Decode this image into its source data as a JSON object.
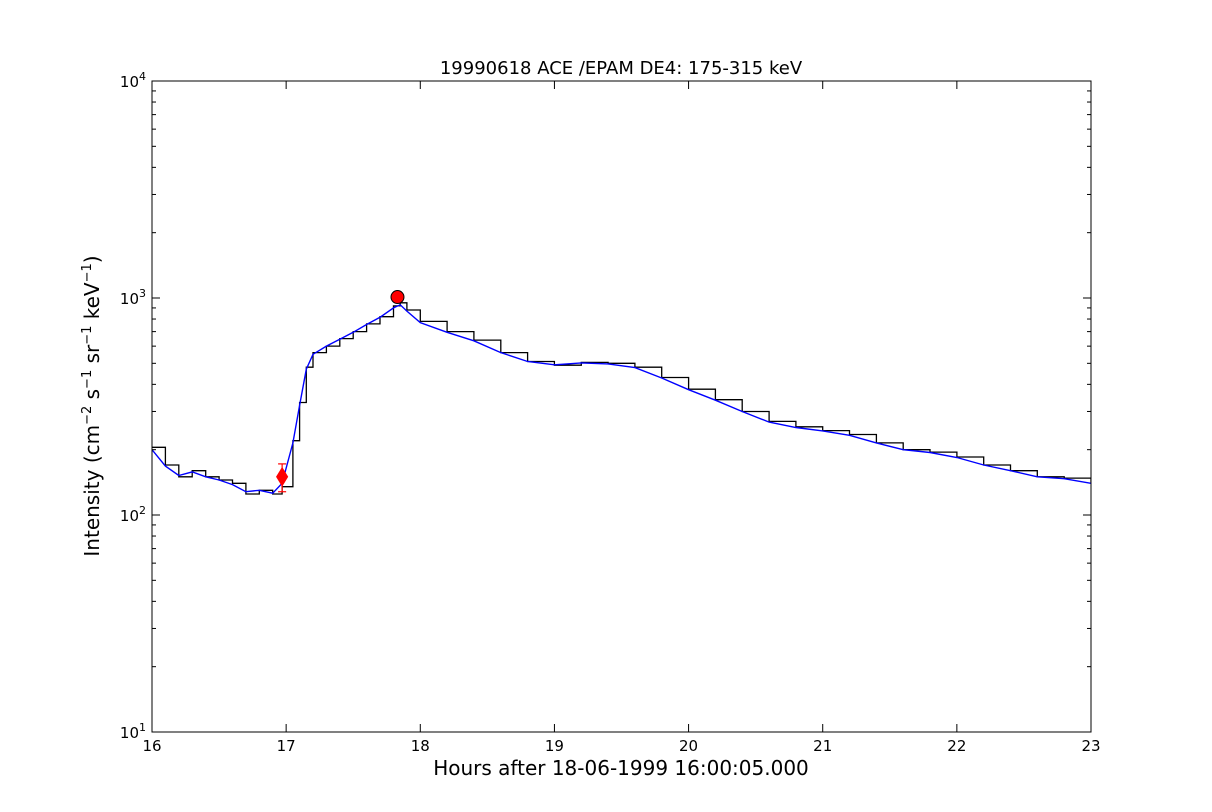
{
  "chart_data": {
    "type": "line",
    "title": "19990618 ACE /EPAM DE4: 175-315 keV",
    "xlabel": "Hours after 18-06-1999 16:00:05.000",
    "ylabel_parts": [
      "Intensity (cm",
      "−2",
      " s",
      "−1",
      " sr",
      "−1",
      " keV",
      "−1",
      ")"
    ],
    "x_scale": "linear",
    "y_scale": "log",
    "xlim": [
      16,
      23
    ],
    "ylim": [
      10,
      10000
    ],
    "x_ticks": [
      16,
      17,
      18,
      19,
      20,
      21,
      22,
      23
    ],
    "x_tick_labels": [
      "16",
      "17",
      "18",
      "19",
      "20",
      "21",
      "22",
      "23"
    ],
    "y_ticks": [
      10,
      100,
      1000,
      10000
    ],
    "y_tick_labels": [
      {
        "base": "10",
        "exp": "1"
      },
      {
        "base": "10",
        "exp": "2"
      },
      {
        "base": "10",
        "exp": "3"
      },
      {
        "base": "10",
        "exp": "4"
      }
    ],
    "grid": false,
    "series": [
      {
        "color": "#000000",
        "style": "steps",
        "x": [
          16.0,
          16.1,
          16.2,
          16.3,
          16.4,
          16.5,
          16.6,
          16.7,
          16.8,
          16.9,
          16.97,
          17.05,
          17.1,
          17.15,
          17.2,
          17.3,
          17.4,
          17.5,
          17.6,
          17.7,
          17.8,
          17.85,
          17.9,
          18.0,
          18.2,
          18.4,
          18.6,
          18.8,
          19.0,
          19.2,
          19.4,
          19.6,
          19.8,
          20.0,
          20.2,
          20.4,
          20.6,
          20.8,
          21.0,
          21.2,
          21.4,
          21.6,
          21.8,
          22.0,
          22.2,
          22.4,
          22.6,
          22.8,
          23.0
        ],
        "y": [
          205,
          170,
          150,
          160,
          150,
          145,
          140,
          125,
          130,
          125,
          135,
          220,
          330,
          480,
          560,
          600,
          650,
          700,
          760,
          820,
          920,
          950,
          880,
          780,
          700,
          640,
          560,
          510,
          490,
          505,
          500,
          480,
          430,
          380,
          340,
          300,
          270,
          255,
          245,
          235,
          215,
          200,
          195,
          185,
          170,
          160,
          150,
          148,
          140
        ]
      },
      {
        "color": "#0000ff",
        "style": "line",
        "x": [
          16.0,
          16.1,
          16.2,
          16.3,
          16.4,
          16.5,
          16.6,
          16.7,
          16.8,
          16.9,
          16.97,
          17.05,
          17.1,
          17.15,
          17.2,
          17.3,
          17.4,
          17.5,
          17.6,
          17.7,
          17.8,
          17.85,
          17.9,
          18.0,
          18.2,
          18.4,
          18.6,
          18.8,
          19.0,
          19.2,
          19.4,
          19.6,
          19.8,
          20.0,
          20.2,
          20.4,
          20.6,
          20.8,
          21.0,
          21.2,
          21.4,
          21.6,
          21.8,
          22.0,
          22.2,
          22.4,
          22.6,
          22.8,
          23.0
        ],
        "y": [
          200,
          168,
          152,
          158,
          150,
          145,
          138,
          128,
          130,
          126,
          140,
          215,
          320,
          470,
          550,
          600,
          645,
          695,
          755,
          815,
          900,
          930,
          870,
          770,
          695,
          635,
          560,
          510,
          492,
          502,
          497,
          478,
          428,
          378,
          338,
          300,
          268,
          253,
          244,
          233,
          215,
          200,
          194,
          184,
          170,
          160,
          150,
          147,
          140
        ]
      }
    ],
    "markers": [
      {
        "name": "peak",
        "shape": "circle",
        "color": "#ff0000",
        "x": 17.83,
        "y": 1010
      },
      {
        "name": "onset",
        "shape": "diamond",
        "color": "#ff0000",
        "x": 16.97,
        "y": 150
      },
      {
        "name": "onset-error",
        "shape": "errorbar",
        "color": "#ff0000",
        "x": 16.97,
        "y": 150,
        "y_low": 128,
        "y_high": 172,
        "x_low": 16.94,
        "x_high": 17.0
      }
    ]
  }
}
